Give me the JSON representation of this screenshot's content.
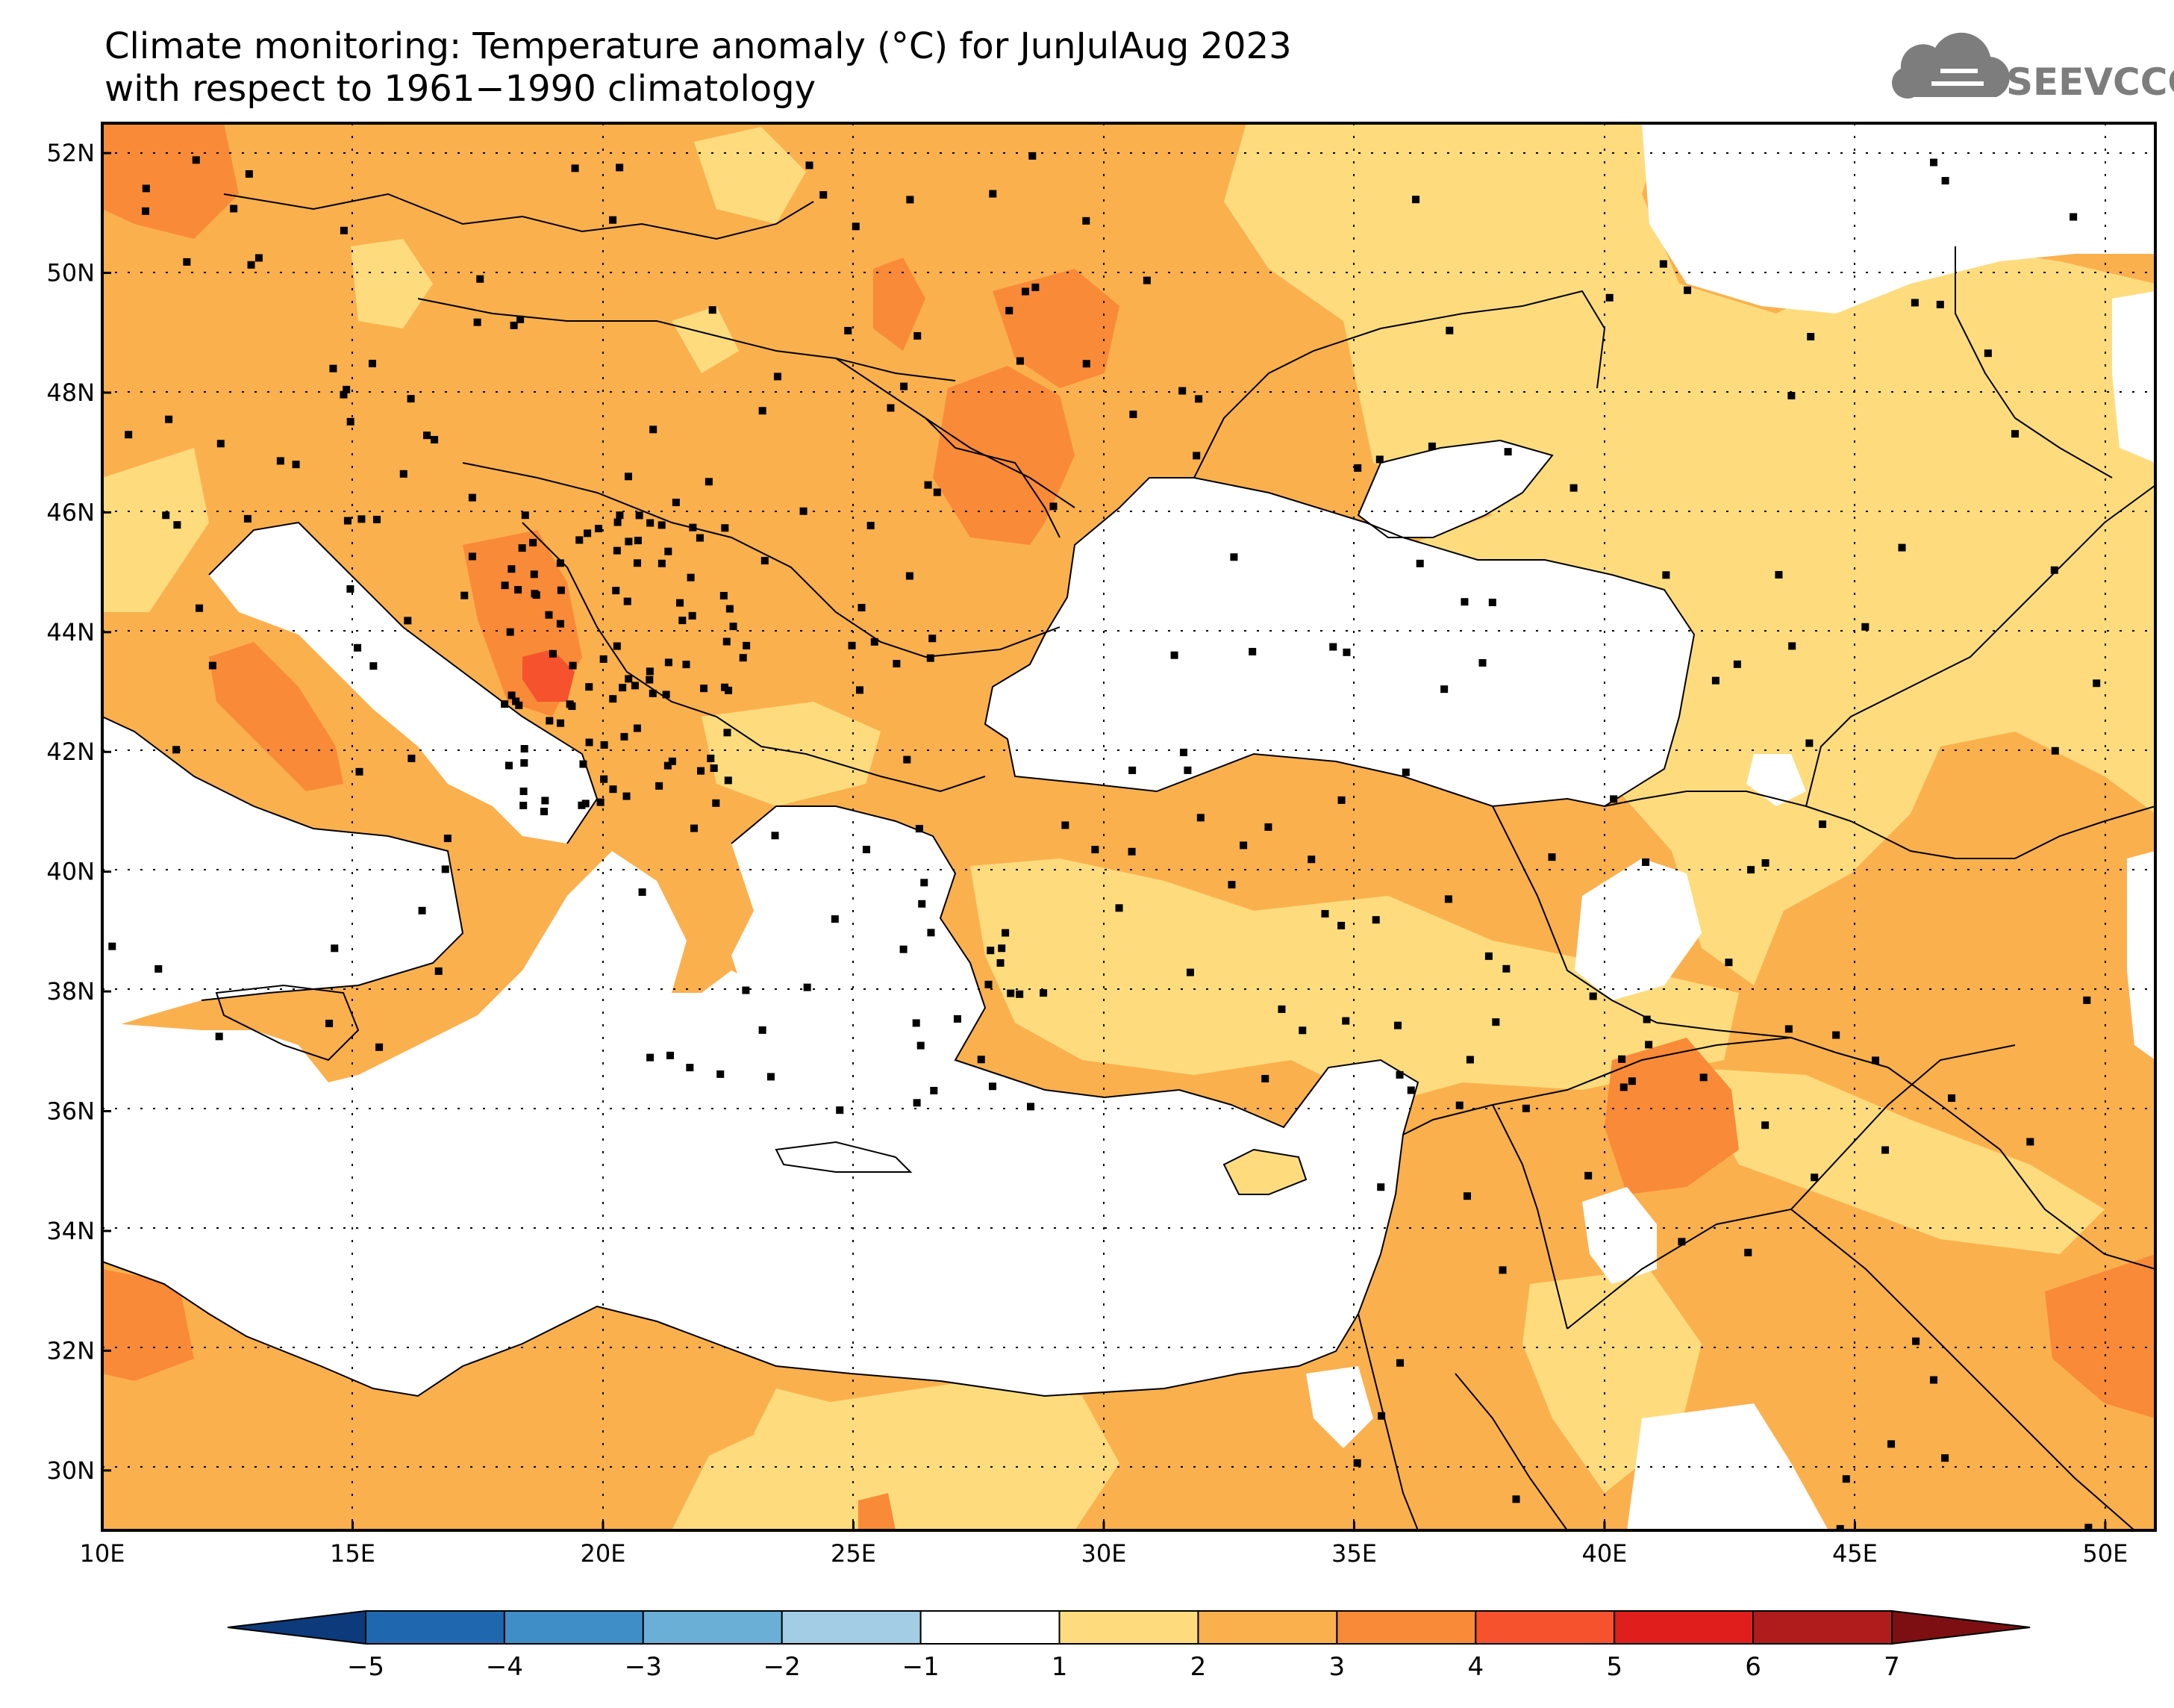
{
  "title": {
    "line1": "Climate monitoring: Temperature anomaly (°C) for JunJulAug 2023",
    "line2": "with respect to 1961−1990 climatology"
  },
  "logo": {
    "text": "SEEVCCC",
    "icon": "cloud-icon"
  },
  "map": {
    "lon_range": [
      10,
      51
    ],
    "lat_range": [
      29,
      52.5
    ],
    "lon_ticks": [
      "10E",
      "15E",
      "20E",
      "25E",
      "30E",
      "35E",
      "40E",
      "45E",
      "50E"
    ],
    "lat_ticks": [
      "52N",
      "50N",
      "48N",
      "46N",
      "44N",
      "42N",
      "40N",
      "38N",
      "36N",
      "34N",
      "32N",
      "30N"
    ],
    "grid": "dotted",
    "sea_color": "#ffffff"
  },
  "colorbar": {
    "labels": [
      "−5",
      "−4",
      "−3",
      "−2",
      "−1",
      "1",
      "2",
      "3",
      "4",
      "5",
      "6",
      "7"
    ],
    "colors": [
      "#0d3a7a",
      "#1f68b0",
      "#3f8ec8",
      "#6aafd6",
      "#a3cde4",
      "#ffffff",
      "#fedc7e",
      "#fbb04e",
      "#f98a38",
      "#f5522d",
      "#e01f1c",
      "#b01b1c",
      "#7d0f12"
    ]
  }
}
